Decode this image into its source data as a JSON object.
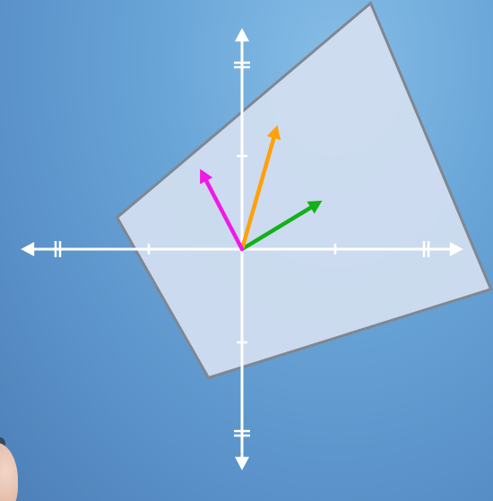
{
  "diagram": {
    "colors": {
      "background": "#6aa6d8",
      "axes": "#ffffff",
      "square_fill": "#d3dff0",
      "square_stroke": "#7f8791",
      "vector_green": "#14b01a",
      "vector_orange": "#ffa10a",
      "vector_magenta": "#ef1ae6"
    },
    "axes": {
      "x_range": [
        -2,
        2
      ],
      "y_range": [
        -2,
        2
      ],
      "tick_step": 1,
      "arrowheads": "both ends"
    },
    "square": {
      "corners": [
        [
          1.38,
          2.64
        ],
        [
          2.67,
          -0.43
        ],
        [
          -0.36,
          -1.38
        ],
        [
          -1.34,
          0.34
        ]
      ]
    },
    "vectors": [
      {
        "name": "green",
        "color_key": "vector_green",
        "tip": [
          0.86,
          0.52
        ]
      },
      {
        "name": "orange",
        "color_key": "vector_orange",
        "tip": [
          0.38,
          1.33
        ]
      },
      {
        "name": "magenta",
        "color_key": "vector_magenta",
        "tip": [
          -0.45,
          0.86
        ]
      }
    ],
    "decorations": [
      "presenter-hand"
    ]
  }
}
